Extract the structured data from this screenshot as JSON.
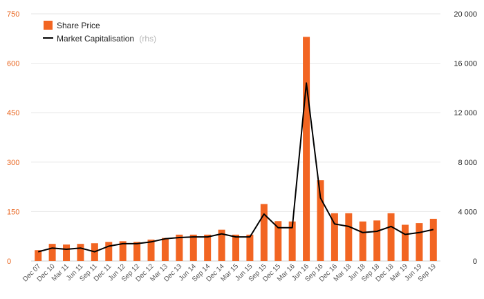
{
  "chart_data": {
    "type": "bar",
    "categories": [
      "Dec 07",
      "Dec 10",
      "Mar 11",
      "Jun 11",
      "Sep 11",
      "Dec 11",
      "Jun 12",
      "Sep 12",
      "Dec 12",
      "Mar 13",
      "Dec 13",
      "Jun 14",
      "Sep 14",
      "Dec 14",
      "Mar 15",
      "Jun 15",
      "Sep 15",
      "Dec 15",
      "Mar 16",
      "Jun 16",
      "Sep 16",
      "Dec 16",
      "Mar 18",
      "Jun 18",
      "Sep 18",
      "Dec 18",
      "Mar 19",
      "Jun 19",
      "Sep 19"
    ],
    "series": [
      {
        "name": "Share Price",
        "type": "bar",
        "axis": "left",
        "color": "#f26522",
        "values": [
          33,
          52,
          50,
          52,
          54,
          58,
          60,
          58,
          65,
          70,
          80,
          80,
          80,
          95,
          80,
          80,
          173,
          121,
          120,
          680,
          245,
          145,
          145,
          120,
          123,
          145,
          110,
          115,
          128
        ]
      },
      {
        "name": "Market Capitalisation",
        "note": "(rhs)",
        "type": "line",
        "axis": "right",
        "color": "#000000",
        "values": [
          750,
          1050,
          950,
          1050,
          750,
          1200,
          1400,
          1400,
          1550,
          1800,
          1900,
          1950,
          1950,
          2200,
          1950,
          1950,
          3800,
          2700,
          2700,
          14400,
          5100,
          3000,
          2800,
          2300,
          2400,
          2800,
          2150,
          2300,
          2550
        ]
      }
    ],
    "y_left": {
      "min": 0,
      "max": 750,
      "ticks": [
        0,
        150,
        300,
        450,
        600,
        750
      ],
      "labels": [
        "0",
        "150",
        "300",
        "450",
        "600",
        "750"
      ]
    },
    "y_right": {
      "min": 0,
      "max": 20000,
      "ticks": [
        0,
        4000,
        8000,
        12000,
        16000,
        20000
      ],
      "labels": [
        "0",
        "4 000",
        "8 000",
        "12 000",
        "16 000",
        "20 000"
      ]
    },
    "grid": true,
    "legend_position": "top-left",
    "legend": {
      "bar_label": "Share Price",
      "line_label": "Market Capitalisation",
      "line_note": "(rhs)"
    },
    "colors": {
      "bar": "#f26522",
      "line": "#000000",
      "grid": "#e6e6e6",
      "left_axis_text": "#e8631c"
    }
  }
}
